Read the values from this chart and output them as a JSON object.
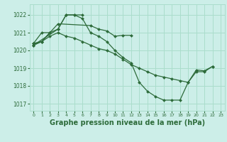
{
  "background_color": "#cceee8",
  "grid_color": "#aaddcc",
  "line_color": "#2d6b3a",
  "marker_color": "#2d6b3a",
  "xlabel": "Graphe pression niveau de la mer (hPa)",
  "xlabel_fontsize": 7,
  "ylabel_ticks": [
    1017,
    1018,
    1019,
    1020,
    1021,
    1022
  ],
  "xtick_labels": [
    "0",
    "1",
    "2",
    "3",
    "4",
    "5",
    "6",
    "7",
    "8",
    "9",
    "10",
    "11",
    "12",
    "13",
    "14",
    "15",
    "16",
    "17",
    "18",
    "19",
    "20",
    "21",
    "22",
    "23"
  ],
  "xticks": [
    0,
    1,
    2,
    3,
    4,
    5,
    6,
    7,
    8,
    9,
    10,
    11,
    12,
    13,
    14,
    15,
    16,
    17,
    18,
    19,
    20,
    21,
    22,
    23
  ],
  "xlim": [
    -0.5,
    23.5
  ],
  "ylim": [
    1016.6,
    1022.6
  ],
  "series": [
    [
      1020.3,
      null,
      null,
      1021.2,
      1022.0,
      1022.0,
      1022.0,
      null,
      null,
      null,
      null,
      null,
      null,
      null,
      null,
      null,
      null,
      null,
      null,
      null,
      null,
      null,
      null,
      null
    ],
    [
      1020.4,
      1021.0,
      1021.0,
      1021.5,
      null,
      null,
      null,
      1021.4,
      1021.2,
      1021.1,
      1020.8,
      1020.85,
      1020.85,
      null,
      null,
      null,
      null,
      null,
      null,
      null,
      null,
      null,
      null,
      null
    ],
    [
      1020.4,
      1020.5,
      1021.0,
      null,
      null,
      null,
      null,
      null,
      null,
      null,
      null,
      null,
      null,
      null,
      null,
      null,
      null,
      null,
      null,
      null,
      null,
      null,
      null,
      null
    ],
    [
      1020.3,
      1020.5,
      1020.8,
      1021.0,
      1020.8,
      1020.7,
      1020.5,
      1020.3,
      1020.1,
      1020.0,
      1019.8,
      1019.5,
      1019.2,
      1019.0,
      1018.8,
      1018.6,
      1018.5,
      1018.4,
      1018.3,
      1018.2,
      1018.9,
      1018.85,
      1019.1,
      null
    ],
    [
      1020.3,
      1020.5,
      1021.0,
      1021.2,
      1022.0,
      1022.0,
      1021.8,
      1021.0,
      1020.8,
      1020.5,
      1020.0,
      1019.6,
      1019.3,
      1018.2,
      1017.7,
      1017.4,
      1017.2,
      1017.2,
      1017.2,
      1018.2,
      1018.8,
      1018.8,
      1019.1,
      null
    ]
  ]
}
